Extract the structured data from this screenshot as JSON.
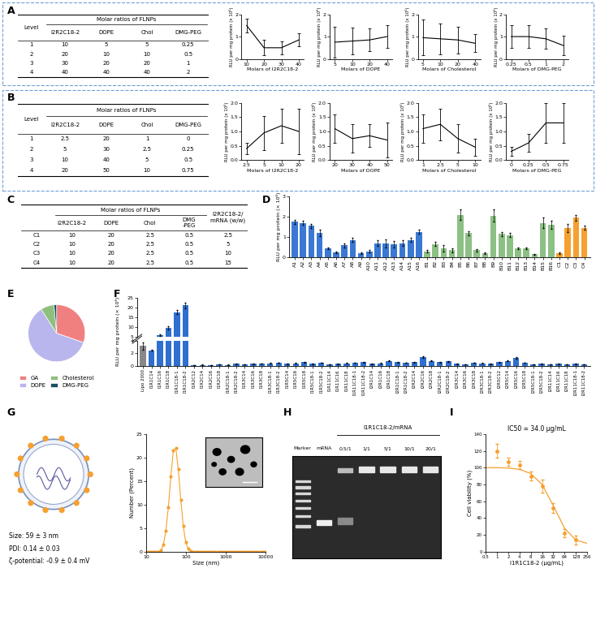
{
  "panel_labels": [
    "A",
    "B",
    "C",
    "D",
    "E",
    "F",
    "G",
    "H",
    "I"
  ],
  "tables": {
    "A": {
      "group_header": "Molar ratios of FLNPs",
      "columns": [
        "Level",
        "I2R2C18-2",
        "DOPE",
        "Chol",
        "DMG-PEG"
      ],
      "rows": [
        [
          1,
          10,
          5,
          5,
          0.25
        ],
        [
          2,
          20,
          10,
          10,
          0.5
        ],
        [
          3,
          30,
          20,
          20,
          1
        ],
        [
          4,
          40,
          40,
          40,
          2
        ]
      ]
    },
    "B": {
      "group_header": "Molar ratios of FLNPs",
      "columns": [
        "Level",
        "I2R2C18-2",
        "DOPE",
        "Chol",
        "DMG-PEG"
      ],
      "rows": [
        [
          1,
          2.5,
          20,
          1,
          0
        ],
        [
          2,
          5,
          30,
          2.5,
          0.25
        ],
        [
          3,
          10,
          40,
          5,
          0.5
        ],
        [
          4,
          20,
          50,
          10,
          0.75
        ]
      ]
    },
    "C": {
      "group_header": "Molar ratios of FLNPs",
      "columns": [
        null,
        "I2R2C18-2",
        "DOPE",
        "Chol",
        "DMG\n-PEG",
        "I2R2C18-2/\nmRNA (w/w)"
      ],
      "rows": [
        [
          "C1",
          10,
          20,
          2.5,
          0.5,
          2.5
        ],
        [
          "C2",
          10,
          20,
          2.5,
          0.5,
          5
        ],
        [
          "C3",
          10,
          20,
          2.5,
          0.5,
          10
        ],
        [
          "C4",
          10,
          20,
          2.5,
          0.5,
          15
        ]
      ]
    }
  },
  "chart_data": [
    {
      "panel": "A",
      "type": "line",
      "x_label": "Molars of I2R2C18-2",
      "y_label": "RLU per mg protein (x 10⁶)",
      "categories": [
        "10",
        "20",
        "30",
        "40"
      ],
      "values": [
        1.5,
        0.5,
        0.5,
        0.85
      ],
      "errors": [
        0.3,
        0.35,
        0.3,
        0.3
      ],
      "ylim": [
        0,
        2
      ],
      "yticks": [
        0,
        1,
        2
      ],
      "color": "#000000"
    },
    {
      "panel": "A",
      "type": "line",
      "x_label": "Molars of DOPE",
      "y_label": "RLU per mg protein (x 10⁶)",
      "categories": [
        "5",
        "10",
        "20",
        "40"
      ],
      "values": [
        0.75,
        0.8,
        0.85,
        1.0
      ],
      "errors": [
        0.7,
        0.6,
        0.5,
        0.5
      ],
      "ylim": [
        0,
        2
      ],
      "yticks": [
        0,
        1,
        2
      ],
      "color": "#000000"
    },
    {
      "panel": "A",
      "type": "line",
      "x_label": "Molars of Cholesterol",
      "y_label": "RLU per mg protein (x 10⁶)",
      "categories": [
        "5",
        "10",
        "20",
        "40"
      ],
      "values": [
        0.95,
        0.9,
        0.85,
        0.7
      ],
      "errors": [
        0.8,
        0.7,
        0.6,
        0.4
      ],
      "ylim": [
        0,
        2
      ],
      "yticks": [
        0,
        1,
        2
      ],
      "color": "#000000"
    },
    {
      "panel": "A",
      "type": "line",
      "x_label": "Molars of DMG-PEG",
      "y_label": "RLU per mg protein (x 10⁶)",
      "categories": [
        "0.25",
        "0.5",
        "1",
        "2"
      ],
      "values": [
        1.0,
        1.0,
        0.9,
        0.6
      ],
      "errors": [
        0.5,
        0.5,
        0.45,
        0.45
      ],
      "ylim": [
        0,
        2
      ],
      "yticks": [
        0,
        1,
        2
      ],
      "color": "#000000"
    },
    {
      "panel": "B",
      "type": "line",
      "x_label": "Molars of I2R2C18-2",
      "y_label": "RLU per mg protein (x 10⁶)",
      "categories": [
        "2.5",
        "5",
        "10",
        "20"
      ],
      "values": [
        0.4,
        0.95,
        1.2,
        1.0
      ],
      "errors": [
        0.2,
        0.6,
        0.6,
        0.8
      ],
      "ylim": [
        0,
        2
      ],
      "yticks": [
        {
          "value": 0,
          "label": "0.0"
        },
        {
          "value": 0.5,
          "label": "0.5"
        },
        {
          "value": 1,
          "label": "1.0"
        },
        {
          "value": 1.5,
          "label": "1.5"
        },
        {
          "value": 2,
          "label": "2.0"
        }
      ],
      "color": "#000000"
    },
    {
      "panel": "B",
      "type": "line",
      "x_label": "Molars of DOPE",
      "y_label": "RLU per mg protein (x 10⁶)",
      "categories": [
        "20",
        "30",
        "40",
        "50"
      ],
      "values": [
        1.1,
        0.75,
        0.85,
        0.7
      ],
      "errors": [
        0.5,
        0.5,
        0.4,
        0.6
      ],
      "ylim": [
        0,
        2
      ],
      "yticks": [
        {
          "value": 0,
          "label": "0.0"
        },
        {
          "value": 0.5,
          "label": "0.5"
        },
        {
          "value": 1,
          "label": "1.0"
        },
        {
          "value": 1.5,
          "label": "1.5"
        },
        {
          "value": 2,
          "label": "2.0"
        }
      ],
      "color": "#000000"
    },
    {
      "panel": "B",
      "type": "line",
      "x_label": "Molars of Cholesterol",
      "y_label": "RLU per mg protein (x 10⁶)",
      "categories": [
        "1",
        "2.5",
        "5",
        "10"
      ],
      "values": [
        1.1,
        1.25,
        0.75,
        0.45
      ],
      "errors": [
        0.5,
        0.55,
        0.5,
        0.3
      ],
      "ylim": [
        0,
        2
      ],
      "yticks": [
        {
          "value": 0,
          "label": "0.0"
        },
        {
          "value": 0.5,
          "label": "0.5"
        },
        {
          "value": 1,
          "label": "1.0"
        },
        {
          "value": 1.5,
          "label": "1.5"
        },
        {
          "value": 2,
          "label": "2.0"
        }
      ],
      "color": "#000000"
    },
    {
      "panel": "B",
      "type": "line",
      "x_label": "Molars of DMG-PEG",
      "y_label": "RLU per mg protein (x 10⁶)",
      "categories": [
        "0",
        "0.25",
        "0.5",
        "0.75"
      ],
      "values": [
        0.3,
        0.6,
        1.3,
        1.3
      ],
      "errors": [
        0.15,
        0.3,
        0.7,
        0.7
      ],
      "ylim": [
        0,
        2
      ],
      "yticks": [
        {
          "value": 0,
          "label": "0.0"
        },
        {
          "value": 0.5,
          "label": "0.5"
        },
        {
          "value": 1,
          "label": "1.0"
        },
        {
          "value": 1.5,
          "label": "1.5"
        },
        {
          "value": 2,
          "label": "2.0"
        }
      ],
      "color": "#000000"
    },
    {
      "panel": "D",
      "type": "bar",
      "y_label": "RLU per mg protein (× 10⁶)",
      "categories": [
        "A1",
        "A2",
        "A3",
        "A4",
        "A5",
        "A6",
        "A7",
        "A8",
        "A9",
        "A10",
        "A11",
        "A12",
        "A13",
        "A14",
        "A15",
        "A16",
        "B1",
        "B2",
        "B3",
        "B4",
        "B5",
        "B6",
        "B7",
        "B8",
        "B9",
        "B10",
        "B11",
        "B12",
        "B13",
        "B14",
        "B15",
        "B16",
        "C1",
        "C2",
        "C3",
        "C4"
      ],
      "values": [
        1.75,
        1.7,
        1.55,
        1.2,
        0.45,
        0.25,
        0.6,
        0.85,
        0.2,
        0.3,
        0.7,
        0.7,
        0.65,
        0.7,
        0.85,
        1.25,
        0.3,
        0.65,
        0.45,
        0.35,
        2.1,
        1.2,
        0.35,
        0.2,
        2.05,
        1.15,
        1.1,
        0.45,
        0.45,
        0.15,
        1.7,
        1.6,
        0.2,
        1.45,
        1.95,
        1.45
      ],
      "errors": [
        0.1,
        0.1,
        0.1,
        0.15,
        0.05,
        0.03,
        0.1,
        0.1,
        0.03,
        0.05,
        0.15,
        0.2,
        0.15,
        0.15,
        0.1,
        0.1,
        0.05,
        0.1,
        0.15,
        0.1,
        0.25,
        0.1,
        0.05,
        0.03,
        0.3,
        0.1,
        0.1,
        0.05,
        0.05,
        0.03,
        0.25,
        0.2,
        0.03,
        0.2,
        0.15,
        0.1
      ],
      "colors": [
        "#3a78d4",
        "#3a78d4",
        "#3a78d4",
        "#3a78d4",
        "#3a78d4",
        "#3a78d4",
        "#3a78d4",
        "#3a78d4",
        "#3a78d4",
        "#3a78d4",
        "#3a78d4",
        "#3a78d4",
        "#3a78d4",
        "#3a78d4",
        "#3a78d4",
        "#3a78d4",
        "#8cc084",
        "#8cc084",
        "#8cc084",
        "#8cc084",
        "#8cc084",
        "#8cc084",
        "#8cc084",
        "#8cc084",
        "#8cc084",
        "#8cc084",
        "#8cc084",
        "#8cc084",
        "#8cc084",
        "#8cc084",
        "#8cc084",
        "#8cc084",
        "#f5a030",
        "#f5a030",
        "#f5a030",
        "#f5a030"
      ],
      "ylim": [
        0,
        3
      ],
      "yticks": [
        0,
        1,
        2,
        3
      ]
    },
    {
      "panel": "E",
      "type": "pie",
      "categories": [
        "GA",
        "DOPE",
        "Cholesterol",
        "DMG-PEG"
      ],
      "values": [
        30.3,
        60.6,
        7.6,
        1.5
      ],
      "colors": [
        "#f08080",
        "#b9b6ee",
        "#8fbf7f",
        "#1b4f5f"
      ],
      "legend": "upper center"
    },
    {
      "panel": "F",
      "type": "bar",
      "y_label": "RLU per mg protein (× 10⁶)",
      "categories": [
        "Lipo 2000",
        "I1R1C14",
        "I1R1C16",
        "I1R1C18",
        "I1R1C18-1",
        "I1R1C18-2",
        "I1R2C12",
        "I1R2C14",
        "I1R2C16",
        "I1R2C18",
        "I1R2C18-1",
        "I1R2C18-2",
        "I1R3C14",
        "I1R3C16",
        "I1R3C18",
        "I1R3C18-1",
        "I1R3C18-2",
        "I1R5C14",
        "I1R5C16",
        "I1R5C18",
        "I1R5C18-1",
        "I1R5C18-2",
        "I1R11C14",
        "I1R11C16",
        "I1R11C18",
        "I1R11C18-1",
        "I1R11C18-2",
        "I2R1C14",
        "I2R1C16",
        "I2R1C18",
        "I2R1C18-1",
        "I2R1C18-2",
        "I2R2C14",
        "I2R2C16",
        "I2R2C18",
        "I2R2C18-1",
        "I2R2C18-2",
        "I2R3C14",
        "I2R3C16",
        "I2R3C18",
        "I2R3C18-1",
        "I2R3C18-2",
        "I2R5C12",
        "I2R5C14",
        "I2R5C16",
        "I2R5C18",
        "I2R5C18-1",
        "I2R5C18-2",
        "I2R11C14",
        "I2R11C16",
        "I2R11C18",
        "I2R11C18-1",
        "I2R11C18-2"
      ],
      "values": [
        3.2,
        2.5,
        5.8,
        9.5,
        17.5,
        21,
        0.1,
        0.15,
        0.1,
        0.2,
        0.15,
        0.3,
        0.2,
        0.3,
        0.35,
        0.4,
        0.5,
        0.3,
        0.4,
        0.6,
        0.3,
        0.5,
        0.2,
        0.3,
        0.4,
        0.5,
        0.6,
        0.3,
        0.4,
        0.8,
        0.6,
        0.5,
        0.6,
        1.4,
        0.8,
        0.6,
        0.7,
        0.3,
        0.2,
        0.5,
        0.4,
        0.3,
        0.6,
        0.8,
        1.3,
        0.5,
        0.2,
        0.3,
        0.2,
        0.3,
        0.2,
        0.3,
        0.2
      ],
      "errors": [
        0.6,
        0.1,
        0.5,
        0.7,
        1.0,
        1.5,
        0.02,
        0.03,
        0.02,
        0.03,
        0.03,
        0.05,
        0.03,
        0.05,
        0.05,
        0.05,
        0.05,
        0.05,
        0.05,
        0.05,
        0.05,
        0.05,
        0.03,
        0.05,
        0.05,
        0.05,
        0.05,
        0.05,
        0.05,
        0.1,
        0.05,
        0.05,
        0.05,
        0.15,
        0.1,
        0.05,
        0.05,
        0.05,
        0.03,
        0.05,
        0.05,
        0.05,
        0.05,
        0.1,
        0.1,
        0.05,
        0.03,
        0.05,
        0.03,
        0.05,
        0.03,
        0.05,
        0.03
      ],
      "colors": [
        "#888888",
        "#2f6fd0",
        "#2f6fd0",
        "#2f6fd0",
        "#2f6fd0",
        "#2f6fd0",
        "#2f6fd0",
        "#2f6fd0",
        "#2f6fd0",
        "#2f6fd0",
        "#2f6fd0",
        "#2f6fd0",
        "#2f6fd0",
        "#2f6fd0",
        "#2f6fd0",
        "#2f6fd0",
        "#2f6fd0",
        "#2f6fd0",
        "#2f6fd0",
        "#2f6fd0",
        "#2f6fd0",
        "#2f6fd0",
        "#2f6fd0",
        "#2f6fd0",
        "#2f6fd0",
        "#2f6fd0",
        "#2f6fd0",
        "#2f6fd0",
        "#2f6fd0",
        "#2f6fd0",
        "#2f6fd0",
        "#2f6fd0",
        "#2f6fd0",
        "#2f6fd0",
        "#2f6fd0",
        "#2f6fd0",
        "#2f6fd0",
        "#2f6fd0",
        "#2f6fd0",
        "#2f6fd0",
        "#2f6fd0",
        "#2f6fd0",
        "#2f6fd0",
        "#2f6fd0",
        "#2f6fd0",
        "#2f6fd0",
        "#2f6fd0",
        "#2f6fd0",
        "#2f6fd0",
        "#2f6fd0",
        "#2f6fd0",
        "#2f6fd0",
        "#2f6fd0"
      ],
      "segments": [
        {
          "ylim": [
            0,
            4
          ],
          "yticks": [
            0,
            2,
            4
          ]
        },
        {
          "ylim": [
            5,
            25
          ],
          "yticks": [
            5,
            10,
            15,
            20,
            25
          ]
        }
      ]
    },
    {
      "panel": "G",
      "type": "line",
      "x_label": "Size (nm)",
      "y_label": "Number (Percent)",
      "log": "x",
      "x": [
        10,
        11.55,
        13.34,
        15.4,
        17.78,
        20.54,
        23.71,
        27.38,
        31.62,
        36.52,
        42.17,
        48.7,
        56.23,
        64.94,
        74.99,
        86.6,
        100,
        115.5,
        133.4,
        154,
        177.8,
        205.4,
        237.1,
        273.8,
        316.2,
        365.2,
        421.7,
        487,
        562.3,
        649.4,
        749.9,
        866,
        1000,
        1155,
        1334,
        1540,
        1778,
        2054,
        2371,
        2738,
        3162,
        3652,
        4217,
        4870,
        5623,
        6494,
        7499,
        8660,
        10000
      ],
      "values": [
        0,
        0,
        0,
        0,
        0,
        0,
        0.3,
        1.5,
        4.5,
        9.5,
        16,
        21.5,
        22,
        17.5,
        11,
        5.5,
        2,
        0.6,
        0.1,
        0,
        0,
        0,
        0,
        0,
        0,
        0,
        0,
        0,
        0,
        0,
        0,
        0,
        0,
        0,
        0,
        0,
        0,
        0,
        0,
        0,
        0,
        0,
        0,
        0,
        0,
        0,
        0,
        0,
        0
      ],
      "xlim": [
        10,
        10000
      ],
      "xticks": [
        10,
        100,
        1000,
        10000
      ],
      "ylim": [
        0,
        25
      ],
      "yticks": [
        0,
        5,
        10,
        15,
        20,
        25
      ],
      "color": "#f5a030",
      "marker": "o"
    },
    {
      "panel": "I",
      "type": "scatter",
      "title": "IC50 = 34.0 μg/mL",
      "x_label": "I1R1C18-2 (μg/mL)",
      "y_label": "Cell viability (%)",
      "log": "x",
      "x": [
        1,
        2,
        4,
        8,
        16,
        32,
        64,
        128
      ],
      "values": [
        120,
        107,
        103,
        90,
        78,
        52,
        22,
        14
      ],
      "errors": [
        8,
        5,
        5,
        5,
        8,
        6,
        5,
        5
      ],
      "fit": {
        "x": [
          0.5,
          1,
          2,
          4,
          8,
          16,
          32,
          64,
          128,
          256
        ],
        "values": [
          100,
          100,
          99.5,
          98,
          93,
          80,
          55,
          28,
          14,
          10
        ]
      },
      "xlim": [
        0.5,
        256
      ],
      "xticks": [
        0.5,
        1,
        2,
        4,
        8,
        16,
        32,
        64,
        128,
        256
      ],
      "ylim": [
        0,
        140
      ],
      "yticks": [
        0,
        20,
        40,
        60,
        80,
        100,
        120,
        140
      ],
      "color": "#f5a030",
      "marker": "o"
    }
  ],
  "nanoparticle": {
    "size": "Size: 59 ± 3 nm",
    "pdi": "PDI: 0.14 ± 0.03",
    "zeta": "ζ-potential: -0.9 ± 0.4 mV"
  },
  "gel": {
    "lanes": [
      "Marker",
      "mRNA",
      "0.5/1",
      "1/1",
      "5/1",
      "10/1",
      "20/1"
    ],
    "group_label": "I1R1C18-2/mRNA"
  }
}
